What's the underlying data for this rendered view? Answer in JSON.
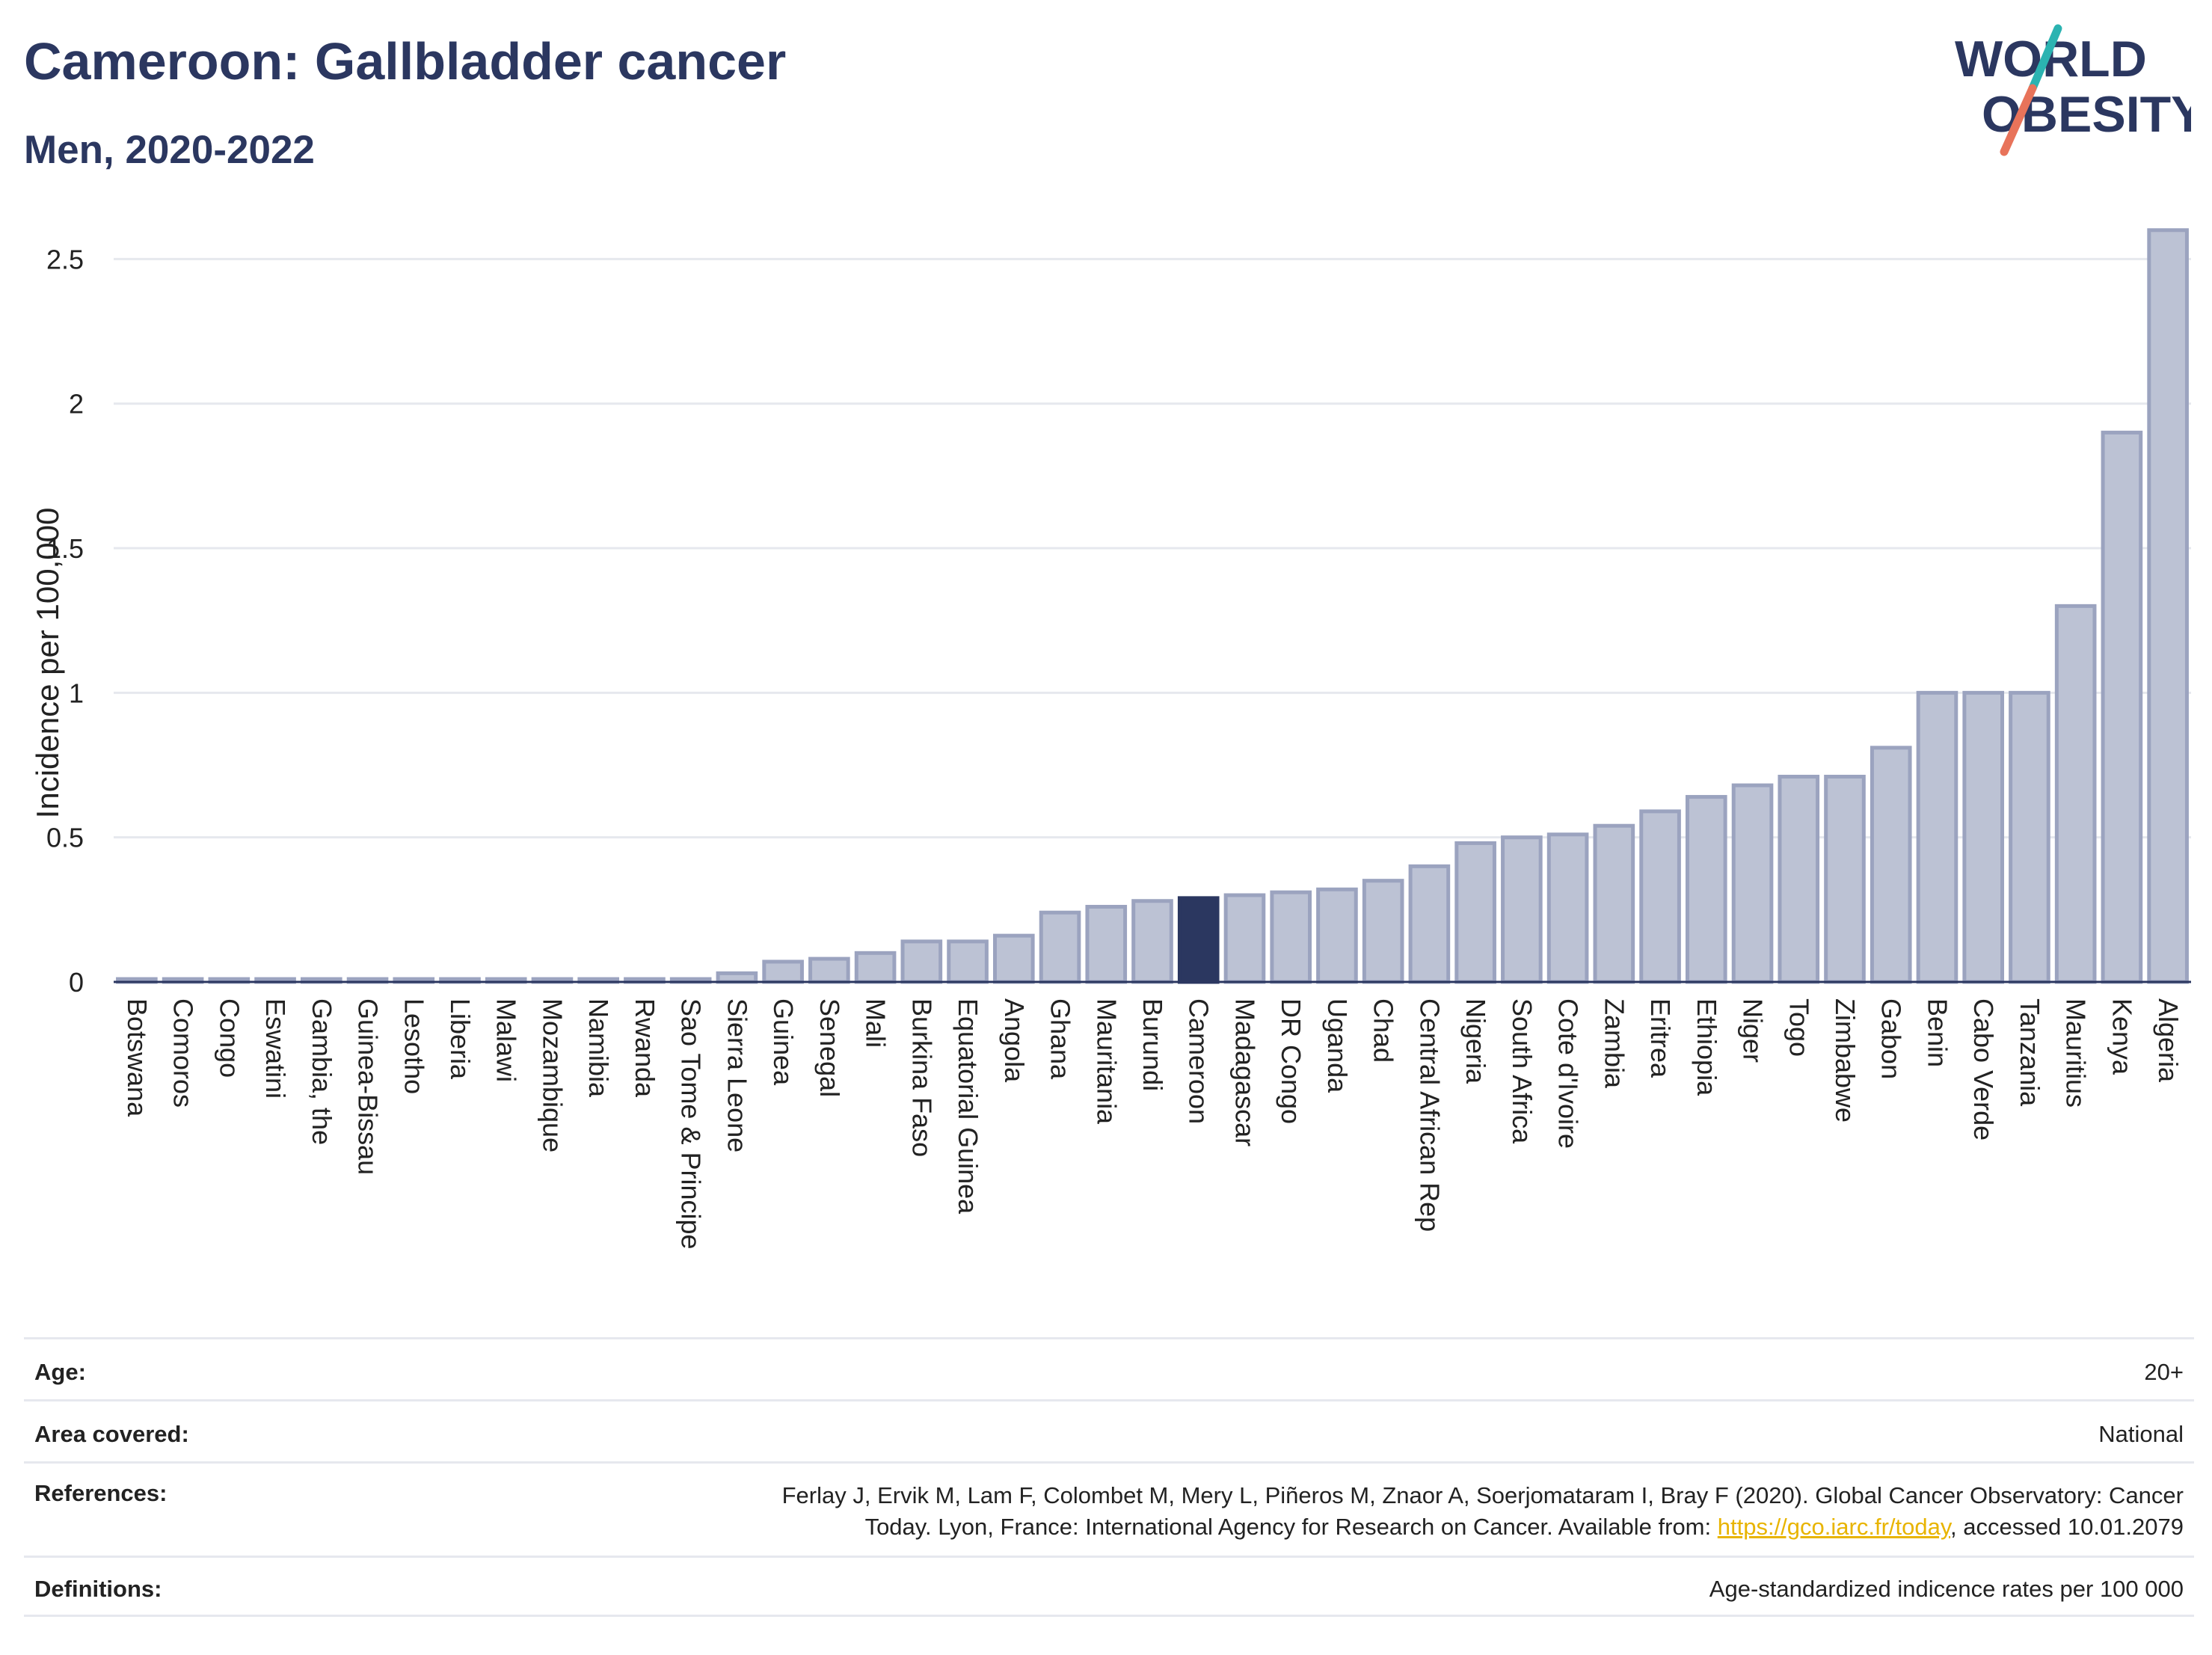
{
  "header": {
    "title": "Cameroon: Gallbladder cancer",
    "subtitle": "Men, 2020-2022"
  },
  "logo": {
    "line1": "WORLD",
    "line2": "OBESITY",
    "text_color": "#2b3760",
    "slash_colors": [
      "#2bb3b1",
      "#e8735a"
    ]
  },
  "colors": {
    "bar": "#bcc2d4",
    "bar_stroke": "#9ba3bf",
    "highlight": "#2b3760",
    "grid": "#e6e8ee",
    "axis": "#2b3760"
  },
  "chart_data": {
    "type": "bar",
    "highlight": "Cameroon",
    "ylabel": "Incidence per 100,000",
    "xlabel": "",
    "ylim": [
      0,
      2.62
    ],
    "yticks": [
      0,
      0.5,
      1,
      1.5,
      2,
      2.5
    ],
    "ytick_labels": [
      "0",
      "0.5",
      "1",
      "1.5",
      "2",
      "2.5"
    ],
    "grid": true,
    "categories": [
      "Botswana",
      "Comoros",
      "Congo",
      "Eswatini",
      "Gambia, the",
      "Guinea-Bissau",
      "Lesotho",
      "Liberia",
      "Malawi",
      "Mozambique",
      "Namibia",
      "Rwanda",
      "Sao Tome & Principe",
      "Sierra Leone",
      "Guinea",
      "Senegal",
      "Mali",
      "Burkina Faso",
      "Equatorial Guinea",
      "Angola",
      "Ghana",
      "Mauritania",
      "Burundi",
      "Cameroon",
      "Madagascar",
      "DR Congo",
      "Uganda",
      "Chad",
      "Central African Rep",
      "Nigeria",
      "South Africa",
      "Cote d'Ivoire",
      "Zambia",
      "Eritrea",
      "Ethiopia",
      "Niger",
      "Togo",
      "Zimbabwe",
      "Gabon",
      "Benin",
      "Cabo Verde",
      "Tanzania",
      "Mauritius",
      "Kenya",
      "Algeria"
    ],
    "values": [
      0.01,
      0.01,
      0.01,
      0.01,
      0.01,
      0.01,
      0.01,
      0.01,
      0.01,
      0.01,
      0.01,
      0.01,
      0.01,
      0.03,
      0.07,
      0.08,
      0.1,
      0.14,
      0.14,
      0.16,
      0.24,
      0.26,
      0.28,
      0.29,
      0.3,
      0.31,
      0.32,
      0.35,
      0.4,
      0.48,
      0.5,
      0.51,
      0.54,
      0.59,
      0.64,
      0.68,
      0.71,
      0.71,
      0.81,
      1.0,
      1.0,
      1.0,
      1.3,
      1.9,
      2.6
    ]
  },
  "info": {
    "age_label": "Age:",
    "age_value": "20+",
    "area_label": "Area covered:",
    "area_value": "National",
    "references_label": "References:",
    "references_line1": "Ferlay J, Ervik M, Lam F, Colombet M, Mery L, Piñeros M, Znaor A, Soerjomataram I, Bray F (2020). Global Cancer Observatory: Cancer",
    "references_line2_prefix": "Today. Lyon, France: International Agency for Research on Cancer. Available from: ",
    "references_link": "https://gco.iarc.fr/today",
    "references_line2_suffix": ", accessed 10.01.2079",
    "definitions_label": "Definitions:",
    "definitions_value": "Age-standardized indicence rates per 100 000"
  }
}
